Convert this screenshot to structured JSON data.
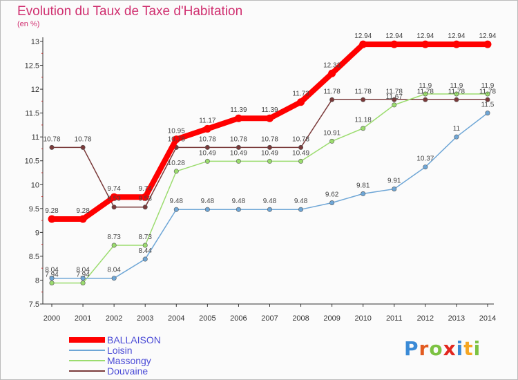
{
  "title": "Evolution du Taux de Taxe d'Habitation",
  "subtitle": "(en %)",
  "brand": {
    "letters": [
      "P",
      "r",
      "o",
      "x",
      "i",
      "t",
      "i"
    ],
    "colors": [
      "#3a8ad6",
      "#e25b20",
      "#7cc242",
      "#e2271f",
      "#3a8ad6",
      "#f5a623",
      "#7cc242"
    ]
  },
  "chart_data": {
    "type": "line",
    "x": [
      "2000",
      "2001",
      "2002",
      "2003",
      "2004",
      "2005",
      "2006",
      "2007",
      "2008",
      "2009",
      "2010",
      "2011",
      "2012",
      "2013",
      "2014"
    ],
    "ylim": [
      7.5,
      13
    ],
    "yticks": [
      "7.5",
      "8",
      "8.5",
      "9",
      "9.5",
      "10",
      "10.5",
      "11",
      "11.5",
      "12",
      "12.5",
      "13"
    ],
    "grid": false,
    "legend_position": "bottom-left",
    "series": [
      {
        "name": "BALLAISON",
        "color": "#ff0000",
        "width": 8,
        "values": [
          9.28,
          9.28,
          9.74,
          9.74,
          10.95,
          11.17,
          11.39,
          11.39,
          11.73,
          12.33,
          12.94,
          12.94,
          12.94,
          12.94,
          12.94
        ],
        "labels": [
          "9.28",
          "9.28",
          "9.74",
          "9.74",
          "10.95",
          "11.17",
          "11.39",
          "11.39",
          "11.73",
          "12.33",
          "12.94",
          "12.94",
          "12.94",
          "12.94",
          "12.94"
        ]
      },
      {
        "name": "Loisin",
        "color": "#6ea6d6",
        "width": 1.5,
        "values": [
          8.04,
          8.04,
          8.04,
          8.44,
          9.48,
          9.48,
          9.48,
          9.48,
          9.48,
          9.62,
          9.81,
          9.91,
          10.37,
          11,
          11.5
        ],
        "labels": [
          "8.04",
          "8.04",
          "8.04",
          "8.44",
          "9.48",
          "9.48",
          "9.48",
          "9.48",
          "9.48",
          "9.62",
          "9.81",
          "9.91",
          "10.37",
          "11",
          "11.5"
        ]
      },
      {
        "name": "Massongy",
        "color": "#9bdc6e",
        "width": 1.5,
        "values": [
          7.94,
          7.94,
          8.73,
          8.73,
          10.28,
          10.49,
          10.49,
          10.49,
          10.49,
          10.91,
          11.18,
          11.67,
          11.9,
          11.9,
          11.9
        ],
        "labels": [
          "7.94",
          "7.94",
          "8.73",
          "8.73",
          "10.28",
          "10.49",
          "10.49",
          "10.49",
          "10.49",
          "10.91",
          "11.18",
          "11.67",
          "11.9",
          "11.9",
          "11.9"
        ]
      },
      {
        "name": "Douvaine",
        "color": "#7a3a3a",
        "width": 1.5,
        "values": [
          10.78,
          10.78,
          9.53,
          9.53,
          10.78,
          10.78,
          10.78,
          10.78,
          10.78,
          11.78,
          11.78,
          11.78,
          11.78,
          11.78,
          11.78
        ],
        "labels": [
          "10.78",
          "10.78",
          "9.53",
          "9.53",
          "10.78",
          "10.78",
          "10.78",
          "10.78",
          "10.78",
          "11.78",
          "11.78",
          "11.78",
          "11.78",
          "11.78",
          "11.78"
        ]
      }
    ]
  }
}
